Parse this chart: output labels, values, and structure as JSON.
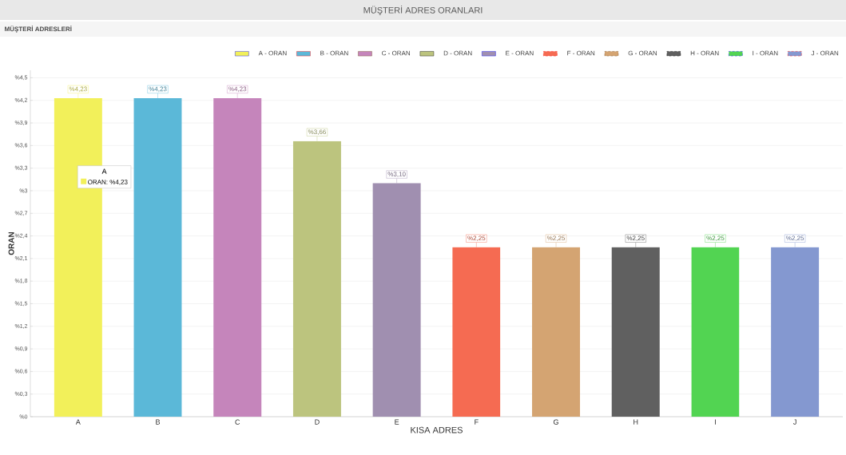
{
  "chart_data": {
    "type": "bar",
    "title": "MÜŞTERİ ADRES ORANLARI",
    "subtitle": "MÜŞTERİ ADRESLERİ",
    "xlabel": "KISA ADRES",
    "ylabel": "ORAN",
    "categories": [
      "A",
      "B",
      "C",
      "D",
      "E",
      "F",
      "G",
      "H",
      "I",
      "J"
    ],
    "series": [
      {
        "name": "A - ORAN",
        "color": "#f2f05a",
        "values": [
          4.23,
          null,
          null,
          null,
          null,
          null,
          null,
          null,
          null,
          null
        ],
        "value_labels": [
          "%4,23",
          null,
          null,
          null,
          null,
          null,
          null,
          null,
          null,
          null
        ]
      },
      {
        "name": "B - ORAN",
        "color": "#5bb8d8",
        "values": [
          null,
          4.23,
          null,
          null,
          null,
          null,
          null,
          null,
          null,
          null
        ],
        "value_labels": [
          null,
          "%4,23",
          null,
          null,
          null,
          null,
          null,
          null,
          null,
          null
        ]
      },
      {
        "name": "C - ORAN",
        "color": "#c585bb",
        "values": [
          null,
          null,
          4.23,
          null,
          null,
          null,
          null,
          null,
          null,
          null
        ],
        "value_labels": [
          null,
          null,
          "%4,23",
          null,
          null,
          null,
          null,
          null,
          null,
          null
        ]
      },
      {
        "name": "D - ORAN",
        "color": "#bcc47e",
        "values": [
          null,
          null,
          null,
          3.66,
          null,
          null,
          null,
          null,
          null,
          null
        ],
        "value_labels": [
          null,
          null,
          null,
          "%3,66",
          null,
          null,
          null,
          null,
          null,
          null
        ]
      },
      {
        "name": "E - ORAN",
        "color": "#a08fb0",
        "values": [
          null,
          null,
          null,
          null,
          3.1,
          null,
          null,
          null,
          null,
          null
        ],
        "value_labels": [
          null,
          null,
          null,
          null,
          "%3,10",
          null,
          null,
          null,
          null,
          null
        ]
      },
      {
        "name": "F - ORAN",
        "color": "#f56b52",
        "values": [
          null,
          null,
          null,
          null,
          null,
          2.25,
          null,
          null,
          null,
          null
        ],
        "value_labels": [
          null,
          null,
          null,
          null,
          null,
          "%2,25",
          null,
          null,
          null,
          null
        ]
      },
      {
        "name": "G - ORAN",
        "color": "#d4a472",
        "values": [
          null,
          null,
          null,
          null,
          null,
          null,
          2.25,
          null,
          null,
          null
        ],
        "value_labels": [
          null,
          null,
          null,
          null,
          null,
          null,
          "%2,25",
          null,
          null,
          null
        ]
      },
      {
        "name": "H - ORAN",
        "color": "#606060",
        "values": [
          null,
          null,
          null,
          null,
          null,
          null,
          null,
          2.25,
          null,
          null
        ],
        "value_labels": [
          null,
          null,
          null,
          null,
          null,
          null,
          null,
          "%2,25",
          null,
          null
        ]
      },
      {
        "name": "I - ORAN",
        "color": "#52d452",
        "values": [
          null,
          null,
          null,
          null,
          null,
          null,
          null,
          null,
          2.25,
          null
        ],
        "value_labels": [
          null,
          null,
          null,
          null,
          null,
          null,
          null,
          null,
          "%2,25",
          null
        ]
      },
      {
        "name": "J - ORAN",
        "color": "#8498d0",
        "values": [
          null,
          null,
          null,
          null,
          null,
          null,
          null,
          null,
          null,
          2.25
        ],
        "value_labels": [
          null,
          null,
          null,
          null,
          null,
          null,
          null,
          null,
          null,
          "%2,25"
        ]
      }
    ],
    "ylim": [
      0,
      4.6
    ],
    "yticks": [
      {
        "value": 0,
        "label": "%0"
      },
      {
        "value": 0.3,
        "label": "%0,3"
      },
      {
        "value": 0.6,
        "label": "%0,6"
      },
      {
        "value": 0.9,
        "label": "%0,9"
      },
      {
        "value": 1.2,
        "label": "%1,2"
      },
      {
        "value": 1.5,
        "label": "%1,5"
      },
      {
        "value": 1.8,
        "label": "%1,8"
      },
      {
        "value": 2.1,
        "label": "%2,1"
      },
      {
        "value": 2.4,
        "label": "%2,4"
      },
      {
        "value": 2.7,
        "label": "%2,7"
      },
      {
        "value": 3,
        "label": "%3"
      },
      {
        "value": 3.3,
        "label": "%3,3"
      },
      {
        "value": 3.6,
        "label": "%3,6"
      },
      {
        "value": 3.9,
        "label": "%3,9"
      },
      {
        "value": 4.2,
        "label": "%4,2"
      },
      {
        "value": 4.5,
        "label": "%4,5"
      }
    ],
    "grid": "y",
    "legend": "top right",
    "annotations": [
      "A",
      "ORAN: %4,23"
    ]
  }
}
